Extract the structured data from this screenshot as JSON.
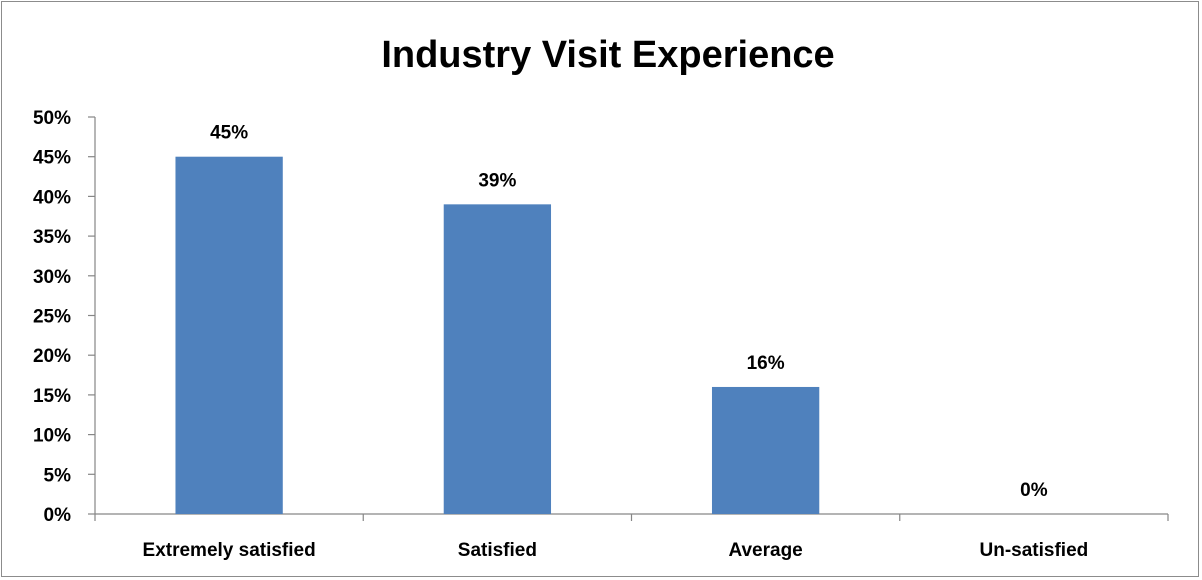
{
  "chart_data": {
    "type": "bar",
    "title": "Industry Visit Experience",
    "xlabel": "",
    "ylabel": "",
    "categories": [
      "Extremely satisfied",
      "Satisfied",
      "Average",
      "Un-satisfied"
    ],
    "values": [
      45,
      39,
      16,
      0
    ],
    "value_labels": [
      "45%",
      "39%",
      "16%",
      "0%"
    ],
    "value_unit": "%",
    "ylim": [
      0,
      50
    ],
    "y_ticks": [
      0,
      5,
      10,
      15,
      20,
      25,
      30,
      35,
      40,
      45,
      50
    ],
    "y_tick_labels": [
      "0%",
      "5%",
      "10%",
      "15%",
      "20%",
      "25%",
      "30%",
      "35%",
      "40%",
      "45%",
      "50%"
    ],
    "grid": false,
    "legend": "none",
    "bar_color": "#4f81bd",
    "axis_color": "#868686"
  }
}
